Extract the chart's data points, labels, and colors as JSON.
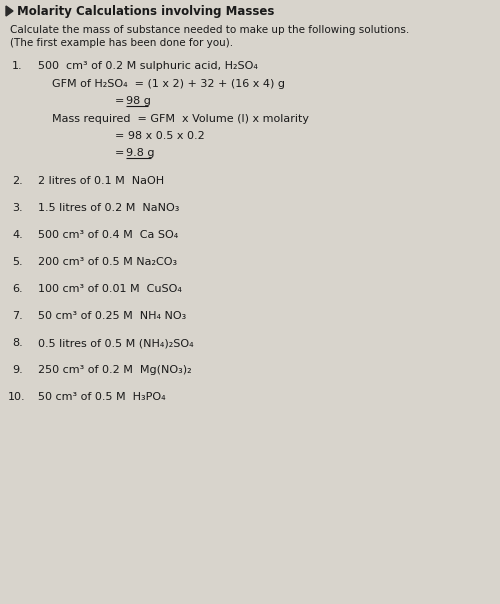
{
  "bg_color": "#d8d4cc",
  "title": "Molarity Calculations involving Masses",
  "subtitle1": "Calculate the mass of substance needed to make up the following solutions.",
  "subtitle2": "(The first example has been done for you).",
  "title_fontsize": 8.5,
  "body_fontsize": 8.0,
  "small_fontsize": 7.5,
  "items": [
    {
      "num": "1.",
      "text": "500  cm³ of 0.2 M sulphuric acid, H₂SO₄"
    },
    {
      "num": "2.",
      "text": "2 litres of 0.1 M  NaOH"
    },
    {
      "num": "3.",
      "text": "1.5 litres of 0.2 M  NaNO₃"
    },
    {
      "num": "4.",
      "text": "500 cm³ of 0.4 M  Ca SO₄"
    },
    {
      "num": "5.",
      "text": "200 cm³ of 0.5 M Na₂CO₃"
    },
    {
      "num": "6.",
      "text": "100 cm³ of 0.01 M  CuSO₄"
    },
    {
      "num": "7.",
      "text": "50 cm³ of 0.25 M  NH₄ NO₃"
    },
    {
      "num": "8.",
      "text": "0.5 litres of 0.5 M (NH₄)₂SO₄"
    },
    {
      "num": "9.",
      "text": "250 cm³ of 0.2 M  Mg(NO₃)₂"
    },
    {
      "num": "10.",
      "text": "50 cm³ of 0.5 M  H₃PO₄"
    }
  ],
  "worked_line0": "GFM of H₂SO₄  = (1 x 2) + 32 + (16 x 4) g",
  "worked_line1_eq": "= ",
  "worked_line1_val": "98 g",
  "worked_line2": "Mass required  = GFM  x Volume (l) x molarity",
  "worked_line3": "= 98 x 0.5 x 0.2",
  "worked_line4_eq": "= ",
  "worked_line4_val": "9.8 g",
  "text_color": "#1a1a1a",
  "triangle_color": "#2a2a2a"
}
